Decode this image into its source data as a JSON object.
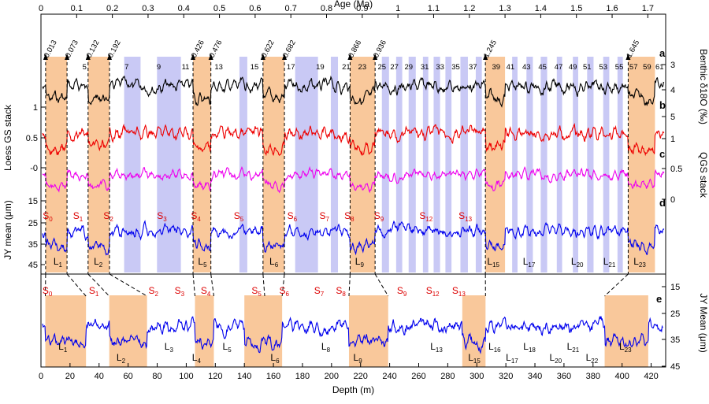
{
  "chart_data": [
    {
      "type": "line",
      "name": "upper-panel",
      "top_axis": {
        "label": "Age (Ma)",
        "range": [
          0,
          1.75
        ],
        "ticks": [
          0,
          0.1,
          0.2,
          0.3,
          0.4,
          0.5,
          0.6,
          0.7,
          0.8,
          0.9,
          1,
          1.1,
          1.2,
          1.3,
          1.4,
          1.5,
          1.6,
          1.7
        ],
        "tick_labels": [
          "0",
          "0.1",
          "0.2",
          "0.3",
          "0.4",
          "0.5",
          "0.6",
          "0.7",
          "0.8",
          "0.9",
          "1",
          "1.1",
          "1.2",
          "1.3",
          "1.4",
          "1.5",
          "1.6",
          "1.7"
        ]
      },
      "age_markers": [
        {
          "age": 0.013,
          "label": "0.013"
        },
        {
          "age": 0.073,
          "label": "0.073"
        },
        {
          "age": 0.132,
          "label": "0.132"
        },
        {
          "age": 0.192,
          "label": "0.192"
        },
        {
          "age": 0.426,
          "label": "0.426"
        },
        {
          "age": 0.476,
          "label": "0.476"
        },
        {
          "age": 0.622,
          "label": "0.622"
        },
        {
          "age": 0.682,
          "label": "0.682"
        },
        {
          "age": 0.866,
          "label": "0.866"
        },
        {
          "age": 0.936,
          "label": "0.936"
        },
        {
          "age": 1.245,
          "label": "1.245"
        },
        {
          "age": 1.645,
          "label": "1.645"
        }
      ],
      "glacial_bands_age": [
        [
          0.013,
          0.073
        ],
        [
          0.132,
          0.192
        ],
        [
          0.426,
          0.476
        ],
        [
          0.622,
          0.682
        ],
        [
          0.866,
          0.936
        ],
        [
          1.245,
          1.3
        ],
        [
          1.645,
          1.72
        ]
      ],
      "interglacial_bands_age": [
        [
          0.233,
          0.279
        ],
        [
          0.325,
          0.392
        ],
        [
          0.556,
          0.578
        ],
        [
          0.712,
          0.776
        ],
        [
          0.812,
          0.832
        ],
        [
          0.955,
          0.975
        ],
        [
          0.995,
          1.012
        ],
        [
          1.03,
          1.05
        ],
        [
          1.07,
          1.085
        ],
        [
          1.1,
          1.118
        ],
        [
          1.133,
          1.15
        ],
        [
          1.175,
          1.196
        ],
        [
          1.218,
          1.235
        ],
        [
          1.32,
          1.335
        ],
        [
          1.36,
          1.378
        ],
        [
          1.4,
          1.418
        ],
        [
          1.445,
          1.46
        ],
        [
          1.49,
          1.505
        ],
        [
          1.53,
          1.548
        ],
        [
          1.575,
          1.592
        ],
        [
          1.615,
          1.63
        ]
      ],
      "mis_labels": [
        {
          "age": 0.122,
          "label": "5"
        },
        {
          "age": 0.24,
          "label": "7"
        },
        {
          "age": 0.33,
          "label": "9"
        },
        {
          "age": 0.405,
          "label": "11"
        },
        {
          "age": 0.498,
          "label": "13"
        },
        {
          "age": 0.598,
          "label": "15"
        },
        {
          "age": 0.7,
          "label": "17"
        },
        {
          "age": 0.782,
          "label": "19"
        },
        {
          "age": 0.855,
          "label": "21"
        },
        {
          "age": 0.9,
          "label": "23"
        },
        {
          "age": 0.955,
          "label": "25"
        },
        {
          "age": 0.99,
          "label": "27"
        },
        {
          "age": 1.03,
          "label": "29"
        },
        {
          "age": 1.075,
          "label": "31"
        },
        {
          "age": 1.118,
          "label": "33"
        },
        {
          "age": 1.162,
          "label": "35"
        },
        {
          "age": 1.21,
          "label": "37"
        },
        {
          "age": 1.275,
          "label": "39"
        },
        {
          "age": 1.315,
          "label": "41"
        },
        {
          "age": 1.36,
          "label": "43"
        },
        {
          "age": 1.405,
          "label": "45"
        },
        {
          "age": 1.45,
          "label": "47"
        },
        {
          "age": 1.49,
          "label": "49"
        },
        {
          "age": 1.53,
          "label": "51"
        },
        {
          "age": 1.575,
          "label": "53"
        },
        {
          "age": 1.62,
          "label": "55"
        },
        {
          "age": 1.66,
          "label": "57"
        },
        {
          "age": 1.698,
          "label": "59"
        },
        {
          "age": 1.733,
          "label": "61"
        }
      ],
      "series": [
        {
          "name": "a",
          "color": "#000000",
          "axis": "Benthic δ18O (‰)",
          "axis_side": "right",
          "ticks": [
            3,
            4,
            5
          ],
          "tick_labels": [
            "3",
            "4",
            "5"
          ],
          "range": [
            2.7,
            5.5
          ]
        },
        {
          "name": "b",
          "color": "#ee0000",
          "axis": "Loess GS stack",
          "axis_side": "left",
          "ticks": [
            1,
            0.5,
            0
          ],
          "tick_labels": [
            "1",
            "0.5",
            "-0"
          ],
          "range": [
            -0.2,
            1.4
          ]
        },
        {
          "name": "c",
          "color": "#ee00ee",
          "axis": "QGS stack",
          "axis_side": "right",
          "ticks": [
            1,
            0.5,
            0
          ],
          "tick_labels": [
            "1",
            "0.5",
            "0"
          ],
          "range": [
            -0.1,
            1.3
          ]
        },
        {
          "name": "d",
          "color": "#0000ee",
          "axis": "JY mean (μm)",
          "axis_side": "left",
          "ticks": [
            15,
            25,
            35,
            45
          ],
          "tick_labels": [
            "15",
            "25",
            "35",
            "45"
          ],
          "range": [
            10,
            48
          ]
        }
      ],
      "soil_labels": [
        {
          "age": 0.005,
          "text": "S",
          "sub": "0"
        },
        {
          "age": 0.09,
          "text": "S",
          "sub": "1"
        },
        {
          "age": 0.175,
          "text": "S",
          "sub": "2"
        },
        {
          "age": 0.325,
          "text": "S",
          "sub": "3"
        },
        {
          "age": 0.42,
          "text": "S",
          "sub": "4"
        },
        {
          "age": 0.54,
          "text": "S",
          "sub": "5"
        },
        {
          "age": 0.69,
          "text": "S",
          "sub": "6"
        },
        {
          "age": 0.78,
          "text": "S",
          "sub": "7"
        },
        {
          "age": 0.85,
          "text": "S",
          "sub": "8"
        },
        {
          "age": 0.933,
          "text": "S",
          "sub": "9"
        },
        {
          "age": 1.06,
          "text": "S",
          "sub": "12"
        },
        {
          "age": 1.17,
          "text": "S",
          "sub": "13"
        }
      ],
      "loess_labels": [
        {
          "age": 0.035,
          "text": "L",
          "sub": "1"
        },
        {
          "age": 0.148,
          "text": "L",
          "sub": "2"
        },
        {
          "age": 0.44,
          "text": "L",
          "sub": "5"
        },
        {
          "age": 0.64,
          "text": "L",
          "sub": "6"
        },
        {
          "age": 0.88,
          "text": "L",
          "sub": "9"
        },
        {
          "age": 1.25,
          "text": "L",
          "sub": "15"
        },
        {
          "age": 1.35,
          "text": "L",
          "sub": "17"
        },
        {
          "age": 1.485,
          "text": "L",
          "sub": "20"
        },
        {
          "age": 1.575,
          "text": "L",
          "sub": "21"
        },
        {
          "age": 1.66,
          "text": "L",
          "sub": "23"
        }
      ],
      "ties": [
        [
          0.013,
          3
        ],
        [
          0.073,
          31
        ],
        [
          0.132,
          47
        ],
        [
          0.192,
          73
        ],
        [
          0.426,
          106
        ],
        [
          0.476,
          119
        ],
        [
          0.622,
          154
        ],
        [
          0.682,
          166
        ],
        [
          0.866,
          212
        ],
        [
          0.936,
          239
        ],
        [
          1.245,
          306
        ],
        [
          1.645,
          388
        ]
      ]
    },
    {
      "type": "line",
      "name": "lower-panel",
      "series_label": "e",
      "x_axis": {
        "label": "Depth (m)",
        "range": [
          0,
          430
        ],
        "ticks": [
          0,
          20,
          40,
          60,
          80,
          100,
          120,
          140,
          160,
          180,
          200,
          220,
          240,
          260,
          280,
          300,
          320,
          340,
          360,
          380,
          400,
          420
        ],
        "tick_labels": [
          "0",
          "20",
          "40",
          "60",
          "80",
          "100",
          "120",
          "140",
          "160",
          "180",
          "200",
          "220",
          "240",
          "260",
          "280",
          "300",
          "320",
          "340",
          "360",
          "380",
          "400",
          "420"
        ]
      },
      "y_axis": {
        "label": "JY Mean (μm)",
        "side": "right",
        "range": [
          12,
          45
        ],
        "ticks": [
          15,
          25,
          35,
          45
        ],
        "tick_labels": [
          "15",
          "25",
          "35",
          "45"
        ],
        "inverted": true
      },
      "glacial_bands_depth": [
        [
          3,
          31
        ],
        [
          47,
          73
        ],
        [
          106,
          119
        ],
        [
          140,
          154
        ],
        [
          154,
          166
        ],
        [
          212,
          239
        ],
        [
          290,
          306
        ],
        [
          388,
          418
        ]
      ],
      "soil_labels": [
        {
          "depth": 1,
          "text": "S",
          "sub": "0"
        },
        {
          "depth": 33,
          "text": "S",
          "sub": "1"
        },
        {
          "depth": 74,
          "text": "S",
          "sub": "2"
        },
        {
          "depth": 92,
          "text": "S",
          "sub": "3"
        },
        {
          "depth": 110,
          "text": "S",
          "sub": "4"
        },
        {
          "depth": 145,
          "text": "S",
          "sub": "5"
        },
        {
          "depth": 164,
          "text": "S",
          "sub": "6"
        },
        {
          "depth": 188,
          "text": "S",
          "sub": "7"
        },
        {
          "depth": 203,
          "text": "S",
          "sub": "8"
        },
        {
          "depth": 245,
          "text": "S",
          "sub": "9"
        },
        {
          "depth": 265,
          "text": "S",
          "sub": "12"
        },
        {
          "depth": 283,
          "text": "S",
          "sub": "13"
        }
      ],
      "loess_labels": [
        {
          "depth": 12,
          "text": "L",
          "sub": "1"
        },
        {
          "depth": 52,
          "text": "L",
          "sub": "2"
        },
        {
          "depth": 85,
          "text": "L",
          "sub": "3"
        },
        {
          "depth": 104,
          "text": "L",
          "sub": "4"
        },
        {
          "depth": 125,
          "text": "L",
          "sub": "5"
        },
        {
          "depth": 158,
          "text": "L",
          "sub": "6"
        },
        {
          "depth": 193,
          "text": "L",
          "sub": "8"
        },
        {
          "depth": 215,
          "text": "L",
          "sub": "9"
        },
        {
          "depth": 268,
          "text": "L",
          "sub": "13"
        },
        {
          "depth": 294,
          "text": "L",
          "sub": "15"
        },
        {
          "depth": 308,
          "text": "L",
          "sub": "16"
        },
        {
          "depth": 320,
          "text": "L",
          "sub": "17"
        },
        {
          "depth": 332,
          "text": "L",
          "sub": "18"
        },
        {
          "depth": 350,
          "text": "L",
          "sub": "20"
        },
        {
          "depth": 362,
          "text": "L",
          "sub": "21"
        },
        {
          "depth": 375,
          "text": "L",
          "sub": "22"
        },
        {
          "depth": 398,
          "text": "L",
          "sub": "23"
        }
      ]
    }
  ],
  "colors": {
    "glacial_band": "#f9c89b",
    "interglacial_band": "#c9c9f5",
    "soil_label": "#dd0000",
    "loess_label": "#000000"
  }
}
